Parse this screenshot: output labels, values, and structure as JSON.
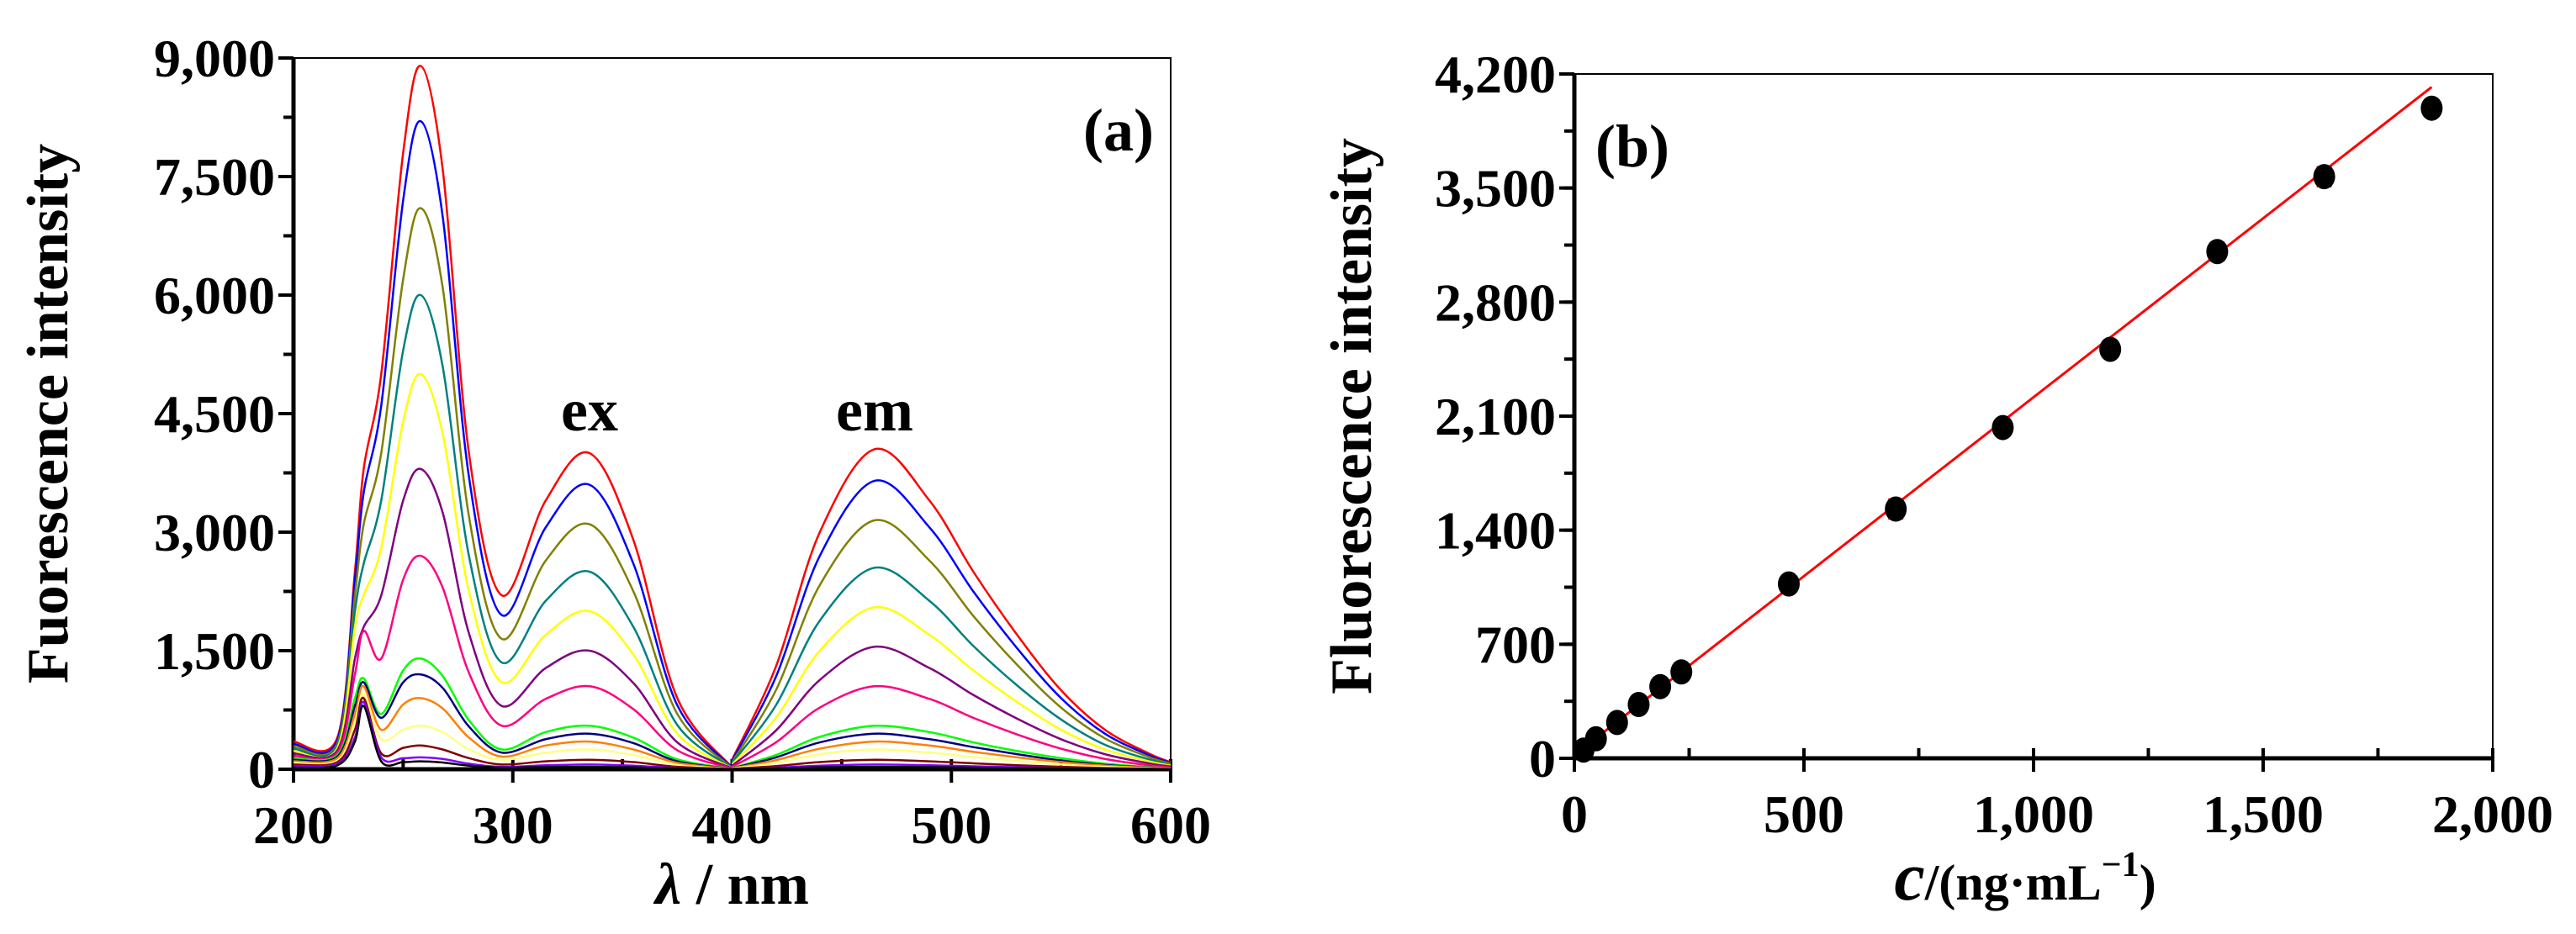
{
  "chart_data": [
    {
      "type": "line",
      "panel_label": "(a)",
      "xlabel_symbol": "λ",
      "xlabel_unit": " / nm",
      "ylabel": "Fuorescence intensity",
      "xlim": [
        200,
        600
      ],
      "ylim": [
        0,
        9000
      ],
      "xticks": [
        "200",
        "300",
        "400",
        "500",
        "600"
      ],
      "xtick_values": [
        200,
        300,
        400,
        500,
        600
      ],
      "yticks": [
        "0",
        "1,500",
        "3,000",
        "4,500",
        "6,000",
        "7,500",
        "9,000"
      ],
      "ytick_values": [
        0,
        1500,
        3000,
        4500,
        6000,
        7500,
        9000
      ],
      "annotations": [
        {
          "text": "ex",
          "x": 335,
          "y": 4500
        },
        {
          "text": "em",
          "x": 465,
          "y": 4500
        }
      ],
      "x_ex": [
        200,
        220,
        228,
        232,
        240,
        250,
        258,
        268,
        280,
        295,
        315,
        335,
        355,
        375,
        400
      ],
      "x_em": [
        400,
        420,
        440,
        465,
        490,
        510,
        530,
        550,
        570,
        590,
        600
      ],
      "series": [
        {
          "color": "#ff0000",
          "ex": [
            350,
            400,
            2500,
            3800,
            5000,
            7800,
            8900,
            7600,
            4000,
            2200,
            3400,
            4000,
            2900,
            900,
            20
          ],
          "em": [
            120,
            1300,
            3000,
            4050,
            3400,
            2500,
            1700,
            1000,
            500,
            200,
            90
          ]
        },
        {
          "color": "#0000ff",
          "ex": [
            320,
            370,
            2400,
            3500,
            4600,
            7200,
            8200,
            7000,
            3700,
            1950,
            3060,
            3600,
            2600,
            810,
            20
          ],
          "em": [
            110,
            1170,
            2700,
            3650,
            3060,
            2250,
            1530,
            900,
            450,
            180,
            80
          ]
        },
        {
          "color": "#808000",
          "ex": [
            290,
            330,
            2200,
            3100,
            4000,
            6200,
            7100,
            6100,
            3200,
            1650,
            2640,
            3100,
            2250,
            700,
            15
          ],
          "em": [
            90,
            1000,
            2330,
            3150,
            2640,
            1940,
            1320,
            780,
            390,
            155,
            70
          ]
        },
        {
          "color": "#008080",
          "ex": [
            260,
            300,
            2000,
            2600,
            3400,
            5300,
            6000,
            5100,
            2700,
            1350,
            2130,
            2500,
            1800,
            560,
            15
          ],
          "em": [
            80,
            810,
            1880,
            2550,
            2130,
            1560,
            1060,
            630,
            310,
            125,
            55
          ]
        },
        {
          "color": "#ffff00",
          "ex": [
            230,
            270,
            1800,
            2200,
            2800,
            4400,
            5000,
            4250,
            2250,
            1100,
            1700,
            2000,
            1450,
            450,
            10
          ],
          "em": [
            60,
            650,
            1500,
            2050,
            1700,
            1250,
            850,
            500,
            250,
            100,
            45
          ]
        },
        {
          "color": "#800080",
          "ex": [
            200,
            240,
            1400,
            1800,
            2200,
            3400,
            3800,
            3250,
            1720,
            800,
            1280,
            1500,
            1090,
            340,
            10
          ],
          "em": [
            45,
            490,
            1130,
            1550,
            1280,
            940,
            640,
            380,
            190,
            75,
            35
          ]
        },
        {
          "color": "#ff0080",
          "ex": [
            170,
            210,
            1200,
            1750,
            1400,
            2400,
            2700,
            2300,
            1220,
            550,
            890,
            1050,
            760,
            240,
            8
          ],
          "em": [
            30,
            340,
            780,
            1050,
            890,
            650,
            440,
            260,
            130,
            50,
            25
          ]
        },
        {
          "color": "#00ff00",
          "ex": [
            140,
            180,
            900,
            1150,
            700,
            1250,
            1400,
            1180,
            620,
            250,
            470,
            550,
            400,
            125,
            5
          ],
          "em": [
            15,
            180,
            410,
            550,
            470,
            340,
            230,
            140,
            70,
            27,
            12
          ]
        },
        {
          "color": "#000080",
          "ex": [
            120,
            160,
            800,
            1100,
            650,
            1100,
            1200,
            1030,
            540,
            210,
            380,
            450,
            330,
            100,
            5
          ],
          "em": [
            12,
            150,
            340,
            450,
            380,
            280,
            190,
            110,
            55,
            22,
            10
          ]
        },
        {
          "color": "#ff8000",
          "ex": [
            100,
            140,
            700,
            1050,
            500,
            820,
            900,
            770,
            400,
            160,
            300,
            350,
            250,
            80,
            4
          ],
          "em": [
            10,
            115,
            260,
            350,
            300,
            220,
            150,
            90,
            45,
            18,
            8
          ]
        },
        {
          "color": "#ffff80",
          "ex": [
            80,
            110,
            600,
            950,
            380,
            500,
            550,
            470,
            250,
            120,
            210,
            250,
            180,
            55,
            3
          ],
          "em": [
            8,
            80,
            190,
            250,
            210,
            155,
            105,
            60,
            30,
            12,
            6
          ]
        },
        {
          "color": "#800000",
          "ex": [
            60,
            90,
            500,
            900,
            200,
            270,
            300,
            250,
            140,
            60,
            100,
            120,
            90,
            30,
            2
          ],
          "em": [
            4,
            40,
            90,
            120,
            100,
            75,
            50,
            30,
            15,
            6,
            3
          ]
        },
        {
          "color": "#8000ff",
          "ex": [
            40,
            70,
            400,
            850,
            150,
            140,
            150,
            130,
            70,
            30,
            50,
            60,
            45,
            15,
            1
          ],
          "em": [
            2,
            20,
            45,
            60,
            50,
            37,
            25,
            15,
            8,
            3,
            2
          ]
        },
        {
          "color": "#000000",
          "ex": [
            20,
            50,
            350,
            800,
            100,
            90,
            100,
            85,
            45,
            20,
            27,
            30,
            24,
            8,
            1
          ],
          "em": [
            1,
            10,
            24,
            30,
            27,
            20,
            13,
            8,
            4,
            2,
            1
          ]
        }
      ]
    },
    {
      "type": "scatter",
      "panel_label": "(b)",
      "xlabel_symbol": "c",
      "xlabel_unit": "/(ng·mL",
      "xlabel_sup": "−1",
      "xlabel_close": ")",
      "ylabel": "Fluorescence intensity",
      "xlim": [
        0,
        2000
      ],
      "ylim": [
        0,
        4200
      ],
      "xticks": [
        "0",
        "500",
        "1,000",
        "1,500",
        "2,000"
      ],
      "xtick_values": [
        0,
        500,
        1000,
        1500,
        2000
      ],
      "yticks": [
        "0",
        "700",
        "1,400",
        "2,100",
        "2,800",
        "3,500",
        "4,200"
      ],
      "ytick_values": [
        0,
        700,
        1400,
        2100,
        2800,
        3500,
        4200
      ],
      "points": {
        "x": [
          20,
          47,
          93,
          140,
          187,
          233,
          467,
          700,
          933,
          1167,
          1400,
          1633,
          1867
        ],
        "y": [
          50,
          120,
          220,
          330,
          440,
          530,
          1070,
          1530,
          2030,
          2510,
          3110,
          3570,
          3990
        ],
        "err": [
          20,
          25,
          25,
          30,
          30,
          30,
          40,
          60,
          40,
          50,
          55,
          60,
          50
        ]
      },
      "fit": {
        "color": "#ff0000",
        "x": [
          0,
          1867
        ],
        "y": [
          20,
          4120
        ]
      },
      "point_color": "#000000",
      "errorbar_color": "#ff0000"
    }
  ]
}
